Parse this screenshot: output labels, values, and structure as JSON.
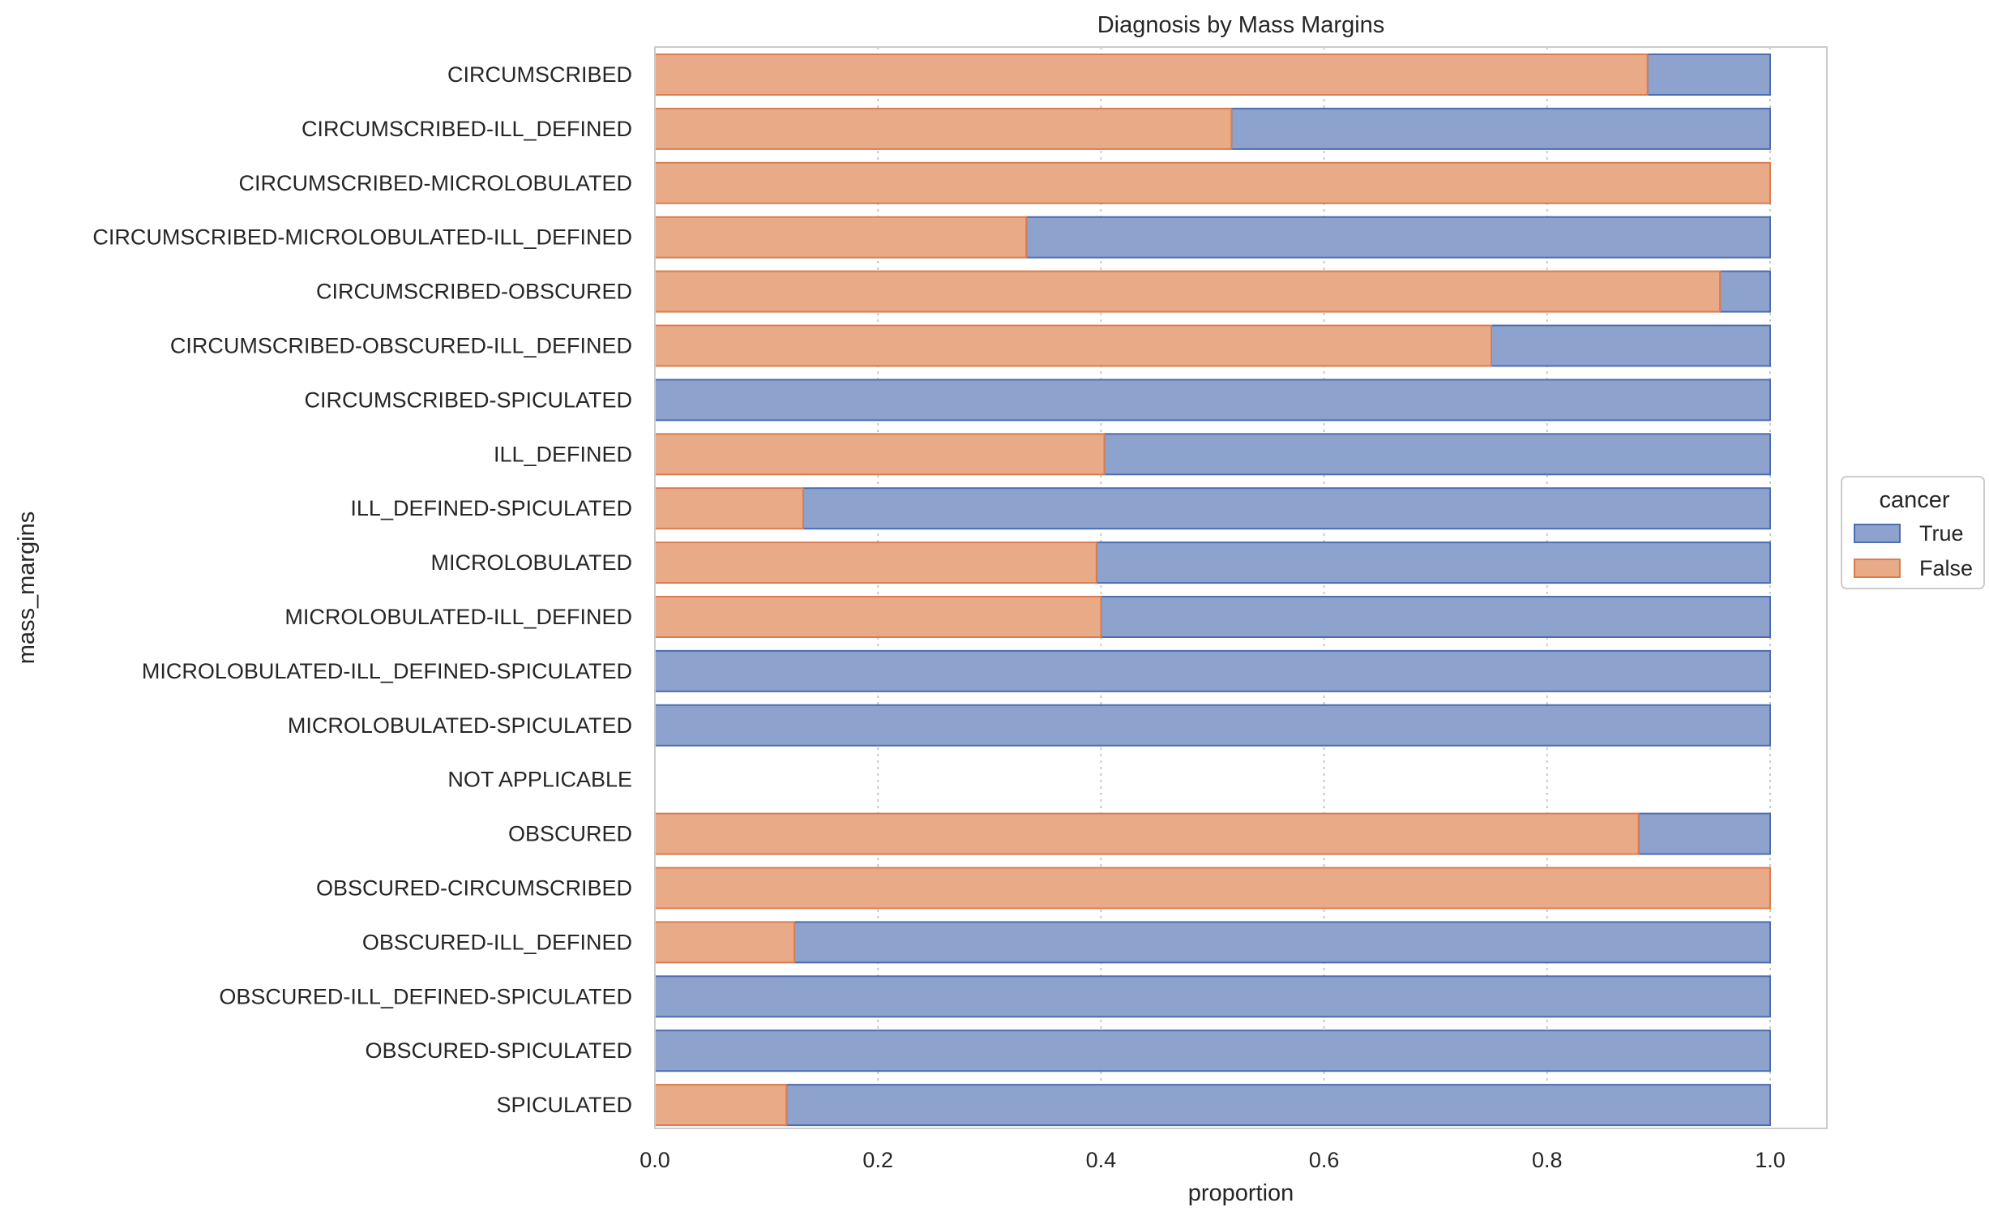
{
  "chart_data": {
    "type": "bar",
    "orientation": "horizontal",
    "stacked": true,
    "title": "Diagnosis by Mass Margins",
    "xlabel": "proportion",
    "ylabel": "mass_margins",
    "xlim": [
      0.0,
      1.05
    ],
    "xticks": [
      "0.0",
      "0.2",
      "0.4",
      "0.6",
      "0.8",
      "1.0"
    ],
    "grid": "vertical dotted",
    "legend": {
      "title": "cancer",
      "placement": "right",
      "entries": [
        "True",
        "False"
      ]
    },
    "categories": [
      "CIRCUMSCRIBED",
      "CIRCUMSCRIBED-ILL_DEFINED",
      "CIRCUMSCRIBED-MICROLOBULATED",
      "CIRCUMSCRIBED-MICROLOBULATED-ILL_DEFINED",
      "CIRCUMSCRIBED-OBSCURED",
      "CIRCUMSCRIBED-OBSCURED-ILL_DEFINED",
      "CIRCUMSCRIBED-SPICULATED",
      "ILL_DEFINED",
      "ILL_DEFINED-SPICULATED",
      "MICROLOBULATED",
      "MICROLOBULATED-ILL_DEFINED",
      "MICROLOBULATED-ILL_DEFINED-SPICULATED",
      "MICROLOBULATED-SPICULATED",
      "NOT APPLICABLE",
      "OBSCURED",
      "OBSCURED-CIRCUMSCRIBED",
      "OBSCURED-ILL_DEFINED",
      "OBSCURED-ILL_DEFINED-SPICULATED",
      "OBSCURED-SPICULATED",
      "SPICULATED"
    ],
    "series": [
      {
        "name": "False",
        "values": [
          0.89,
          0.517,
          1.0,
          0.333,
          0.955,
          0.75,
          0.0,
          0.403,
          0.133,
          0.396,
          0.4,
          0.0,
          0.0,
          0.0,
          0.882,
          1.0,
          0.125,
          0.0,
          0.0,
          0.118
        ]
      },
      {
        "name": "True",
        "values": [
          0.11,
          0.483,
          0.0,
          0.667,
          0.045,
          0.25,
          1.0,
          0.597,
          0.867,
          0.604,
          0.6,
          1.0,
          1.0,
          0.0,
          0.118,
          0.0,
          0.875,
          1.0,
          1.0,
          0.882
        ]
      }
    ],
    "colors": {
      "True": {
        "fill": "#8da2cc",
        "edge": "#4c6db0"
      },
      "False": {
        "fill": "#e8aa87",
        "edge": "#db7c50"
      }
    }
  }
}
